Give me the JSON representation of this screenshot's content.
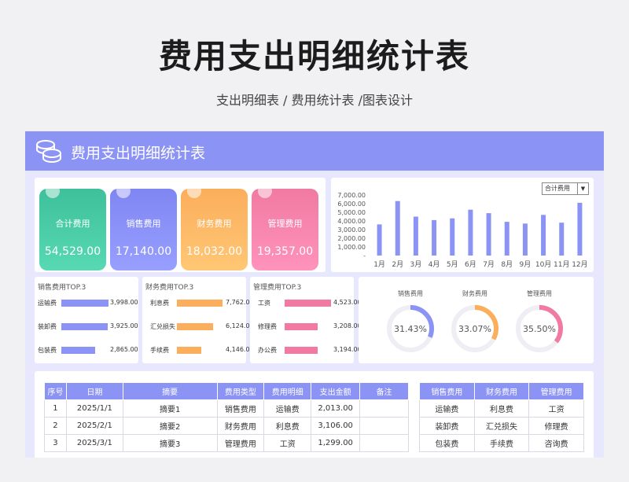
{
  "page": {
    "title": "费用支出明细统计表",
    "subtitle": "支出明细表 / 费用统计表 /图表设计"
  },
  "sheet": {
    "title": "费用支出明细统计表"
  },
  "cards": [
    {
      "label": "合计费用",
      "value": "54,529.00",
      "color": "#3ec09a"
    },
    {
      "label": "销售费用",
      "value": "17,140.00",
      "color": "#7f86f2"
    },
    {
      "label": "财务费用",
      "value": "18,032.00",
      "color": "#fbae5c"
    },
    {
      "label": "管理费用",
      "value": "19,357.00",
      "color": "#f07aa2"
    }
  ],
  "monthly_chart": {
    "selector": "合计费用",
    "chart_data": {
      "type": "bar",
      "categories": [
        "1月",
        "2月",
        "3月",
        "4月",
        "5月",
        "6月",
        "7月",
        "8月",
        "9月",
        "10月",
        "11月",
        "12月"
      ],
      "values": [
        3600,
        6300,
        4500,
        4100,
        4300,
        5300,
        4900,
        3900,
        3700,
        4700,
        3800,
        6100
      ],
      "yticks": [
        "7,000.00",
        "6,000.00",
        "5,000.00",
        "4,000.00",
        "3,000.00",
        "2,000.00",
        "1,000.00",
        "-"
      ],
      "ylim": [
        0,
        7000
      ],
      "color": "#8b93f4"
    }
  },
  "top3": [
    {
      "title": "销售费用TOP.3",
      "color": "#8b93f4",
      "max": 4000,
      "items": [
        {
          "label": "运输费",
          "value": 3998,
          "text": "3,998.00"
        },
        {
          "label": "装卸费",
          "value": 3925,
          "text": "3,925.00"
        },
        {
          "label": "包装费",
          "value": 2865,
          "text": "2,865.00"
        }
      ]
    },
    {
      "title": "财务费用TOP.3",
      "color": "#fbae5c",
      "max": 8000,
      "items": [
        {
          "label": "利息费",
          "value": 7762,
          "text": "7,762.00"
        },
        {
          "label": "汇兑损失",
          "value": 6124,
          "text": "6,124.00"
        },
        {
          "label": "手续费",
          "value": 4146,
          "text": "4,146.00"
        }
      ]
    },
    {
      "title": "管理费用TOP.3",
      "color": "#f07aa2",
      "max": 4600,
      "items": [
        {
          "label": "工资",
          "value": 4523,
          "text": "4,523.00"
        },
        {
          "label": "修理费",
          "value": 3208,
          "text": "3,208.00"
        },
        {
          "label": "办公费",
          "value": 3194,
          "text": "3,194.00"
        }
      ]
    }
  ],
  "donuts": [
    {
      "label": "销售费用",
      "percent": 31.43,
      "text": "31.43%",
      "color": "#8b93f4"
    },
    {
      "label": "财务费用",
      "percent": 33.07,
      "text": "33.07%",
      "color": "#fbae5c"
    },
    {
      "label": "管理费用",
      "percent": 35.5,
      "text": "35.50%",
      "color": "#f07aa2"
    }
  ],
  "detail_table": {
    "headers": [
      "序号",
      "日期",
      "摘要",
      "费用类型",
      "费用明细",
      "支出金额",
      "备注"
    ],
    "rows": [
      [
        "1",
        "2025/1/1",
        "摘要1",
        "销售费用",
        "运输费",
        "2,013.00",
        ""
      ],
      [
        "2",
        "2025/2/1",
        "摘要2",
        "财务费用",
        "利息费",
        "3,106.00",
        ""
      ],
      [
        "3",
        "2025/3/1",
        "摘要3",
        "管理费用",
        "工资",
        "1,299.00",
        ""
      ]
    ]
  },
  "category_table": {
    "headers": [
      "销售费用",
      "财务费用",
      "管理费用"
    ],
    "rows": [
      [
        "运输费",
        "利息费",
        "工资"
      ],
      [
        "装卸费",
        "汇兑损失",
        "修理费"
      ],
      [
        "包装费",
        "手续费",
        "咨询费"
      ]
    ]
  }
}
